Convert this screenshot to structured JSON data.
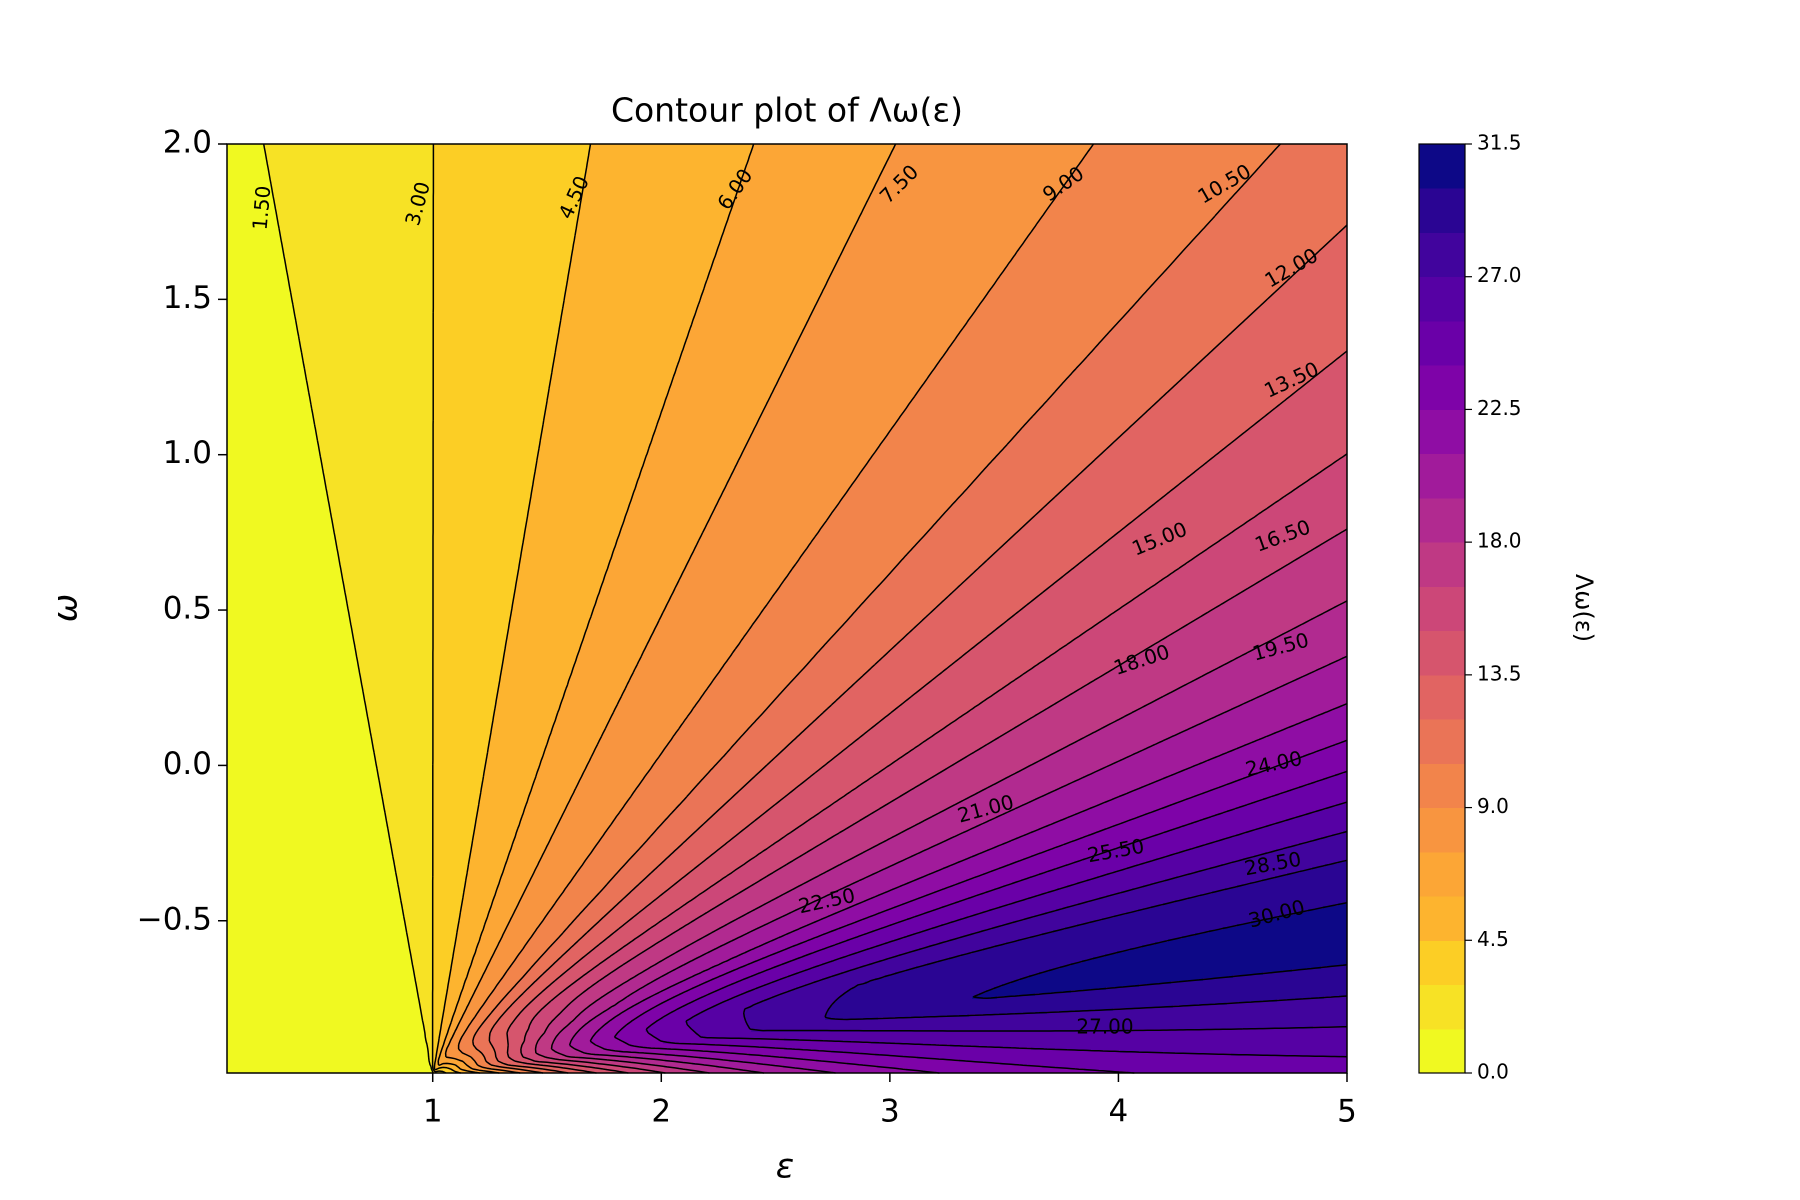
{
  "chart_data": {
    "type": "contour",
    "title": "Contour plot of Λω(ε)",
    "x_label": "ε",
    "y_label": "ω",
    "colorbar_label": "Λω(ε)",
    "xlim": [
      0.1,
      5
    ],
    "ylim": [
      -0.99,
      2
    ],
    "xticks": [
      1,
      2,
      3,
      4,
      5
    ],
    "yticks": [
      {
        "value": -0.5,
        "label": "−0.5"
      },
      {
        "value": 0,
        "label": "0.0"
      },
      0.5,
      {
        "value": 1,
        "label": "1.0"
      },
      1.5,
      {
        "value": 2,
        "label": "2.0"
      }
    ],
    "levels": [
      0,
      1.5,
      3,
      4.5,
      6,
      7.5,
      9,
      10.5,
      12,
      13.5,
      15,
      16.5,
      18,
      19.5,
      21,
      22.5,
      24,
      25.5,
      27,
      28.5,
      30,
      31.5
    ],
    "colors": [
      "#f0f921",
      "#f7e225",
      "#fcce25",
      "#fdb42f",
      "#fca636",
      "#f89540",
      "#f2844b",
      "#ea7457",
      "#e16462",
      "#d6556d",
      "#cc4778",
      "#bf3984",
      "#b12a90",
      "#a11b9b",
      "#8f0da4",
      "#7e03a8",
      "#6a00a8",
      "#5601a4",
      "#41049d",
      "#2a0593",
      "#0d0887"
    ],
    "clim": [
      0,
      31.5
    ],
    "colorbar_ticks": [
      {
        "value": 0,
        "label": "0.0"
      },
      4.5,
      {
        "value": 9,
        "label": "9.0"
      },
      13.5,
      {
        "value": 18,
        "label": "18.0"
      },
      22.5,
      {
        "value": 27,
        "label": "27.0"
      },
      31.5
    ],
    "contour_labels": {
      "values": [
        1.5,
        3,
        4.5,
        6,
        7.5,
        9,
        10.5,
        12,
        13.5,
        15,
        16.5,
        18,
        19.5,
        21,
        22.5,
        24,
        25.5,
        27,
        28.5,
        30
      ],
      "value_labels": [
        "1.50",
        "3.00",
        "4.50",
        "6.00",
        "7.50",
        "9.00",
        "10.50",
        "12.00",
        "13.50",
        "15.00",
        "16.50",
        "18.00",
        "19.50",
        "21.00",
        "22.50",
        "24.00",
        "25.50",
        "27.00",
        "28.50",
        "30.00"
      ]
    }
  }
}
